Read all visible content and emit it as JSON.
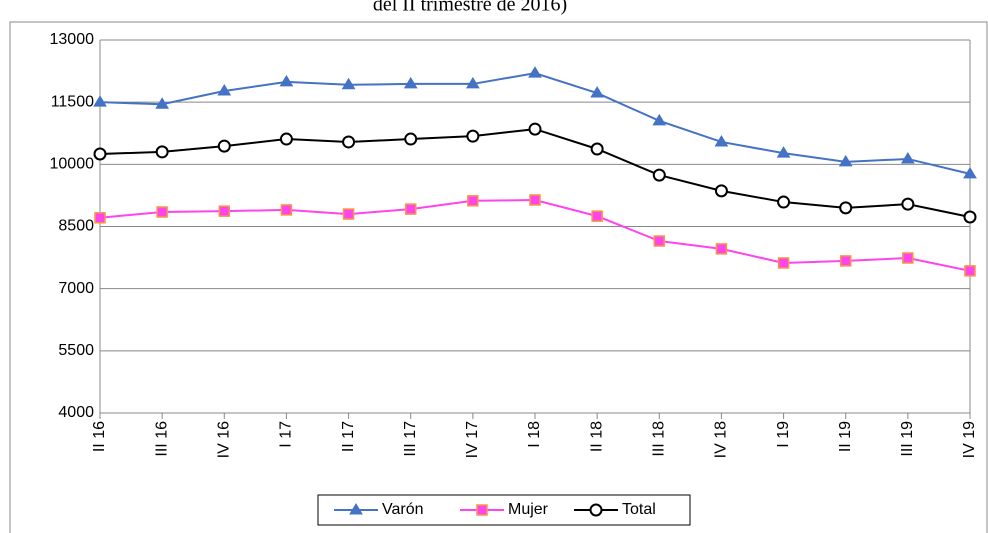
{
  "chart_data": {
    "type": "line",
    "title": "del II trimestre de 2016)",
    "categories": [
      "II 16",
      "III 16",
      "IV 16",
      "I 17",
      "II 17",
      "III 17",
      "IV 17",
      "I 18",
      "II 18",
      "III 18",
      "IV 18",
      "I 19",
      "II 19",
      "III 19",
      "IV 19"
    ],
    "series": [
      {
        "name": "Varón",
        "color": "#4472c4",
        "marker": "triangle",
        "values": [
          11500,
          11450,
          11770,
          11990,
          11920,
          11940,
          11940,
          12200,
          11720,
          11050,
          10540,
          10270,
          10060,
          10130,
          9770
        ]
      },
      {
        "name": "Mujer",
        "color": "#ff44ee",
        "marker": "square",
        "values": [
          8710,
          8850,
          8870,
          8900,
          8800,
          8920,
          9120,
          9140,
          8750,
          8150,
          7960,
          7620,
          7670,
          7740,
          7430
        ]
      },
      {
        "name": "Total",
        "color": "#000000",
        "marker": "circle",
        "values": [
          10250,
          10300,
          10440,
          10610,
          10540,
          10610,
          10680,
          10850,
          10370,
          9740,
          9360,
          9090,
          8950,
          9040,
          8730
        ]
      }
    ],
    "ylim": [
      4000,
      13000
    ],
    "yticks": [
      4000,
      5500,
      7000,
      8500,
      10000,
      11500,
      13000
    ],
    "grid": true,
    "legend": "bottom"
  }
}
